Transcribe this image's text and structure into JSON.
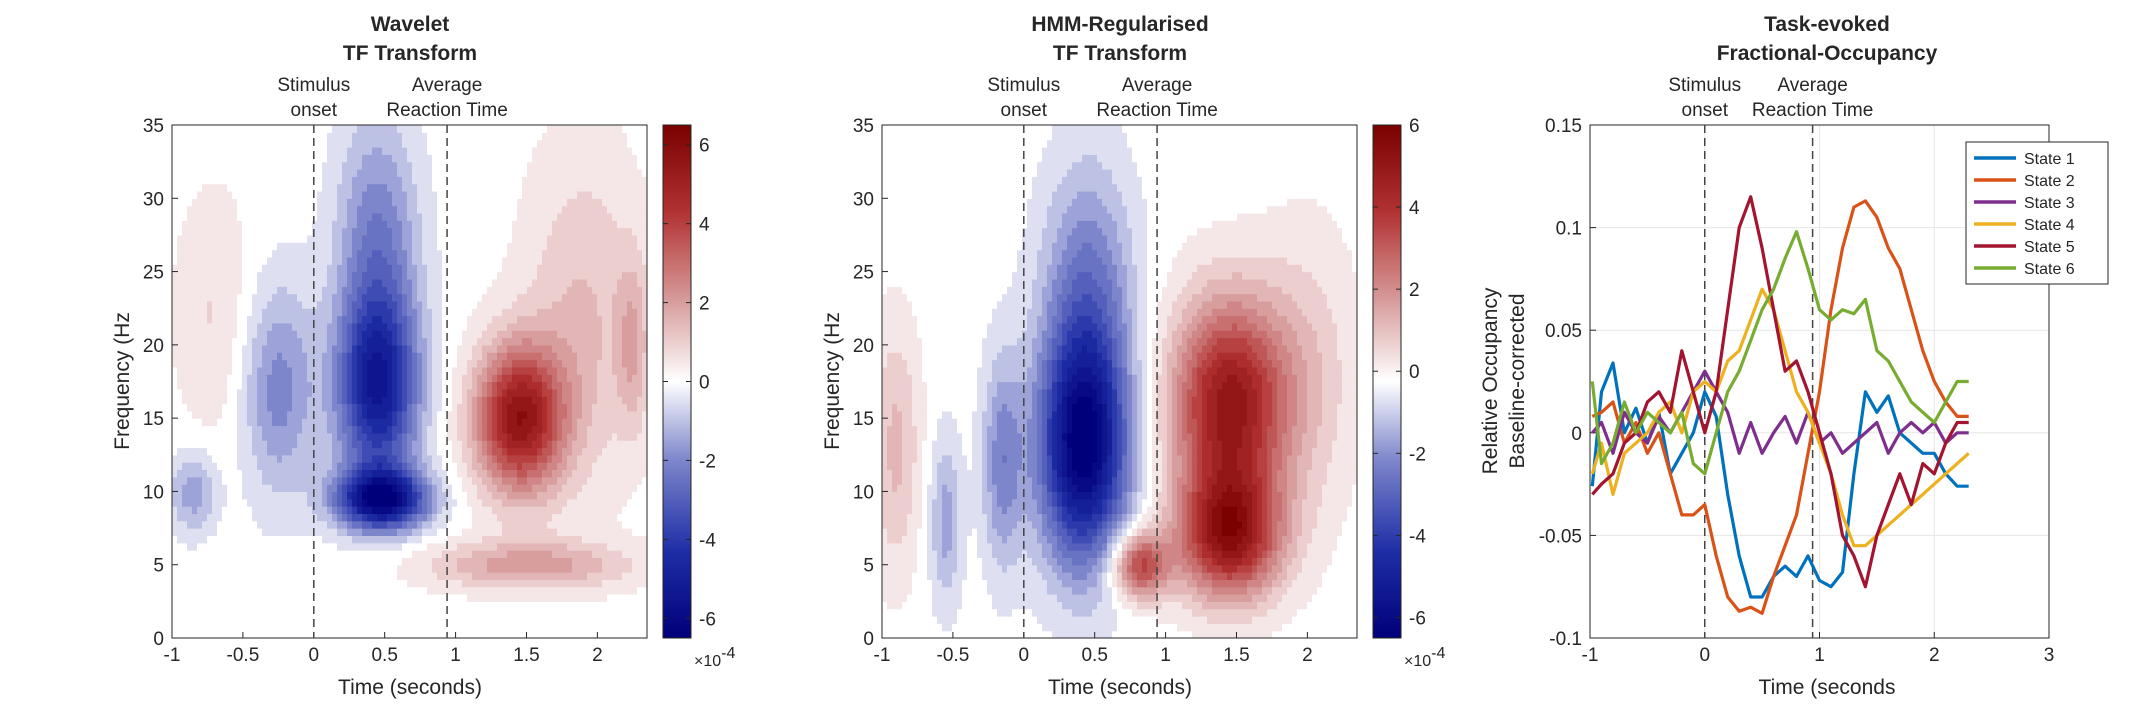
{
  "figure": "three-panel time-frequency and fractional occupancy figure",
  "chart_data": [
    {
      "type": "heatmap",
      "id": "wavelet",
      "title_lines": [
        "Wavelet",
        "TF Transform"
      ],
      "xlabel": "Time (seconds)",
      "ylabel": "Frequency (Hz",
      "xlim": [
        -1,
        2.35
      ],
      "ylim": [
        0,
        35
      ],
      "xticks": [
        -1,
        -0.5,
        0,
        0.5,
        1,
        1.5,
        2
      ],
      "xticklabels": [
        "-1",
        "-0.5",
        "0",
        "0.5",
        "1",
        "1.5",
        "2"
      ],
      "yticks": [
        0,
        5,
        10,
        15,
        20,
        25,
        30,
        35
      ],
      "yticklabels": [
        "0",
        "5",
        "10",
        "15",
        "20",
        "25",
        "30",
        "35"
      ],
      "annotations": [
        {
          "x": 0,
          "lines": [
            "Stimulus",
            "onset"
          ]
        },
        {
          "x": 0.94,
          "lines": [
            "Average",
            "Reaction Time"
          ]
        }
      ],
      "colorbar": {
        "clim": [
          -6.5,
          6.5
        ],
        "ticks": [
          -6,
          -4,
          -2,
          0,
          2,
          4,
          6
        ],
        "ticklabels": [
          "-6",
          "-4",
          "-2",
          "0",
          "2",
          "4",
          "6"
        ],
        "exponent_base": "×10",
        "exponent_power": "-4"
      },
      "blobs": [
        {
          "t": 0.48,
          "f": 9.5,
          "st": 0.22,
          "sf": 1.4,
          "a": -6.0
        },
        {
          "t": 0.45,
          "f": 17,
          "st": 0.2,
          "sf": 4.5,
          "a": -5.0
        },
        {
          "t": 0.45,
          "f": 27,
          "st": 0.2,
          "sf": 6,
          "a": -2.2
        },
        {
          "t": -0.25,
          "f": 17,
          "st": 0.18,
          "sf": 5,
          "a": -2.0
        },
        {
          "t": -0.85,
          "f": 10,
          "st": 0.12,
          "sf": 2,
          "a": -1.6
        },
        {
          "t": 1.45,
          "f": 15,
          "st": 0.22,
          "sf": 3.5,
          "a": 5.5
        },
        {
          "t": 1.5,
          "f": 5,
          "st": 0.5,
          "sf": 1.2,
          "a": 2.0
        },
        {
          "t": 1.9,
          "f": 22,
          "st": 0.3,
          "sf": 8,
          "a": 1.3
        },
        {
          "t": 2.25,
          "f": 20,
          "st": 0.08,
          "sf": 4,
          "a": 1.4
        },
        {
          "t": -0.7,
          "f": 22,
          "st": 0.2,
          "sf": 6,
          "a": 0.8
        }
      ]
    },
    {
      "type": "heatmap",
      "id": "hmm",
      "title_lines": [
        "HMM-Regularised",
        "TF Transform"
      ],
      "xlabel": "Time (seconds)",
      "ylabel": "Frequency (Hz",
      "xlim": [
        -1,
        2.35
      ],
      "ylim": [
        0,
        35
      ],
      "xticks": [
        -1,
        -0.5,
        0,
        0.5,
        1,
        1.5,
        2
      ],
      "xticklabels": [
        "-1",
        "-0.5",
        "0",
        "0.5",
        "1",
        "1.5",
        "2"
      ],
      "yticks": [
        0,
        5,
        10,
        15,
        20,
        25,
        30,
        35
      ],
      "yticklabels": [
        "0",
        "5",
        "10",
        "15",
        "20",
        "25",
        "30",
        "35"
      ],
      "annotations": [
        {
          "x": 0,
          "lines": [
            "Stimulus",
            "onset"
          ]
        },
        {
          "x": 0.94,
          "lines": [
            "Average",
            "Reaction Time"
          ]
        }
      ],
      "colorbar": {
        "clim": [
          -6.5,
          6
        ],
        "ticks": [
          -6,
          -4,
          -2,
          0,
          2,
          4,
          6
        ],
        "ticklabels": [
          "-6",
          "-4",
          "-2",
          "0",
          "2",
          "4",
          "6"
        ],
        "exponent_base": "×10",
        "exponent_power": "-4"
      },
      "blobs": [
        {
          "t": 0.42,
          "f": 13,
          "st": 0.22,
          "sf": 5.5,
          "a": -6.5
        },
        {
          "t": 0.45,
          "f": 24,
          "st": 0.22,
          "sf": 6,
          "a": -2.2
        },
        {
          "t": -0.15,
          "f": 12,
          "st": 0.1,
          "sf": 5,
          "a": -2.0
        },
        {
          "t": -0.55,
          "f": 8,
          "st": 0.08,
          "sf": 4,
          "a": -1.5
        },
        {
          "t": 1.45,
          "f": 16,
          "st": 0.28,
          "sf": 5,
          "a": 5.5
        },
        {
          "t": 1.45,
          "f": 7,
          "st": 0.25,
          "sf": 3,
          "a": 5.2
        },
        {
          "t": 0.82,
          "f": 5,
          "st": 0.14,
          "sf": 1.6,
          "a": 4.0
        },
        {
          "t": -0.9,
          "f": 13,
          "st": 0.12,
          "sf": 6,
          "a": 1.4
        },
        {
          "t": 2.0,
          "f": 18,
          "st": 0.25,
          "sf": 7,
          "a": 1.0
        }
      ]
    },
    {
      "type": "line",
      "id": "fo",
      "title_lines": [
        "Task-evoked",
        "Fractional-Occupancy"
      ],
      "xlabel": "Time (seconds",
      "ylabel_lines": [
        "Relative Occupancy",
        "Baseline-corrected"
      ],
      "xlim": [
        -1,
        3
      ],
      "ylim": [
        -0.1,
        0.15
      ],
      "xticks": [
        -1,
        0,
        1,
        2,
        3
      ],
      "xticklabels": [
        "-1",
        "0",
        "1",
        "2",
        "3"
      ],
      "yticks": [
        -0.1,
        -0.05,
        0,
        0.05,
        0.1,
        0.15
      ],
      "yticklabels": [
        "-0.1",
        "-0.05",
        "0",
        "0.05",
        "0.1",
        "0.15"
      ],
      "grid": true,
      "legend_position": "top-right",
      "annotations": [
        {
          "x": 0,
          "lines": [
            "Stimulus",
            "onset"
          ]
        },
        {
          "x": 0.94,
          "lines": [
            "Average",
            "Reaction Time"
          ]
        }
      ],
      "series": [
        {
          "name": "State 1",
          "color": "#0072BD",
          "x": [
            -0.98,
            -0.9,
            -0.8,
            -0.7,
            -0.6,
            -0.5,
            -0.4,
            -0.3,
            -0.2,
            -0.1,
            0,
            0.1,
            0.2,
            0.3,
            0.4,
            0.5,
            0.6,
            0.7,
            0.8,
            0.9,
            1.0,
            1.1,
            1.2,
            1.3,
            1.4,
            1.5,
            1.6,
            1.7,
            1.8,
            1.9,
            2.0,
            2.1,
            2.2,
            2.3
          ],
          "y": [
            -0.026,
            0.02,
            0.034,
            0.0,
            0.012,
            -0.005,
            0.01,
            -0.02,
            -0.01,
            0.0,
            0.02,
            0.008,
            -0.03,
            -0.06,
            -0.08,
            -0.08,
            -0.07,
            -0.065,
            -0.07,
            -0.06,
            -0.072,
            -0.075,
            -0.068,
            -0.02,
            0.02,
            0.01,
            0.018,
            0.0,
            -0.005,
            -0.01,
            -0.01,
            -0.02,
            -0.026,
            -0.026
          ]
        },
        {
          "name": "State 2",
          "color": "#D95319",
          "x": [
            -0.98,
            -0.9,
            -0.8,
            -0.7,
            -0.6,
            -0.5,
            -0.4,
            -0.3,
            -0.2,
            -0.1,
            0,
            0.1,
            0.2,
            0.3,
            0.4,
            0.5,
            0.6,
            0.7,
            0.8,
            0.9,
            1.0,
            1.1,
            1.2,
            1.3,
            1.4,
            1.5,
            1.6,
            1.7,
            1.8,
            1.9,
            2.0,
            2.1,
            2.2,
            2.3
          ],
          "y": [
            0.008,
            0.01,
            0.015,
            -0.005,
            0.005,
            -0.01,
            0.0,
            -0.02,
            -0.04,
            -0.04,
            -0.035,
            -0.06,
            -0.08,
            -0.087,
            -0.085,
            -0.088,
            -0.07,
            -0.055,
            -0.04,
            -0.01,
            0.02,
            0.06,
            0.09,
            0.11,
            0.113,
            0.105,
            0.09,
            0.08,
            0.06,
            0.04,
            0.025,
            0.015,
            0.008,
            0.008
          ]
        },
        {
          "name": "State 3",
          "color": "#7E2F8E",
          "x": [
            -0.98,
            -0.9,
            -0.8,
            -0.7,
            -0.6,
            -0.5,
            -0.4,
            -0.3,
            -0.2,
            -0.1,
            0,
            0.1,
            0.2,
            0.3,
            0.4,
            0.5,
            0.6,
            0.7,
            0.8,
            0.9,
            1.0,
            1.1,
            1.2,
            1.3,
            1.4,
            1.5,
            1.6,
            1.7,
            1.8,
            1.9,
            2.0,
            2.1,
            2.2,
            2.3
          ],
          "y": [
            0.0,
            0.005,
            -0.01,
            0.01,
            0.0,
            -0.005,
            0.008,
            0.0,
            0.01,
            0.02,
            0.03,
            0.02,
            0.01,
            -0.01,
            0.005,
            -0.01,
            0.0,
            0.008,
            -0.005,
            0.01,
            -0.005,
            0.0,
            -0.01,
            -0.005,
            0.0,
            0.005,
            -0.01,
            0.0,
            0.005,
            0.0,
            0.005,
            -0.005,
            0.0,
            0.0
          ]
        },
        {
          "name": "State 4",
          "color": "#EDB120",
          "x": [
            -0.98,
            -0.9,
            -0.8,
            -0.7,
            -0.6,
            -0.5,
            -0.4,
            -0.3,
            -0.2,
            -0.1,
            0,
            0.1,
            0.2,
            0.3,
            0.4,
            0.5,
            0.6,
            0.7,
            0.8,
            0.9,
            1.0,
            1.1,
            1.2,
            1.3,
            1.4,
            1.5,
            1.6,
            1.7,
            1.8,
            1.9,
            2.0,
            2.1,
            2.2,
            2.3
          ],
          "y": [
            -0.02,
            -0.005,
            -0.03,
            -0.01,
            -0.005,
            0.0,
            0.01,
            0.015,
            0.0,
            0.02,
            0.025,
            0.02,
            0.035,
            0.04,
            0.055,
            0.07,
            0.06,
            0.04,
            0.02,
            0.01,
            -0.005,
            -0.02,
            -0.04,
            -0.055,
            -0.055,
            -0.05,
            -0.045,
            -0.04,
            -0.035,
            -0.03,
            -0.025,
            -0.02,
            -0.015,
            -0.01
          ]
        },
        {
          "name": "State 5",
          "color": "#A2142F",
          "x": [
            -0.98,
            -0.9,
            -0.8,
            -0.7,
            -0.6,
            -0.5,
            -0.4,
            -0.3,
            -0.2,
            -0.1,
            0,
            0.1,
            0.2,
            0.3,
            0.4,
            0.5,
            0.6,
            0.7,
            0.8,
            0.9,
            1.0,
            1.1,
            1.2,
            1.3,
            1.4,
            1.5,
            1.6,
            1.7,
            1.8,
            1.9,
            2.0,
            2.1,
            2.2,
            2.3
          ],
          "y": [
            -0.03,
            -0.025,
            -0.02,
            -0.005,
            0.0,
            0.015,
            0.02,
            0.01,
            0.04,
            0.02,
            0.0,
            0.02,
            0.06,
            0.1,
            0.115,
            0.09,
            0.06,
            0.03,
            0.035,
            0.02,
            0.0,
            -0.02,
            -0.05,
            -0.06,
            -0.075,
            -0.05,
            -0.035,
            -0.02,
            -0.035,
            -0.015,
            -0.02,
            -0.005,
            0.005,
            0.005
          ]
        },
        {
          "name": "State 6",
          "color": "#77AC30",
          "x": [
            -0.98,
            -0.9,
            -0.8,
            -0.7,
            -0.6,
            -0.5,
            -0.4,
            -0.3,
            -0.2,
            -0.1,
            0,
            0.1,
            0.2,
            0.3,
            0.4,
            0.5,
            0.6,
            0.7,
            0.8,
            0.9,
            1.0,
            1.1,
            1.2,
            1.3,
            1.4,
            1.5,
            1.6,
            1.7,
            1.8,
            1.9,
            2.0,
            2.1,
            2.2,
            2.3
          ],
          "y": [
            0.025,
            -0.015,
            -0.005,
            0.015,
            0.0,
            0.01,
            0.005,
            0.0,
            0.01,
            -0.015,
            -0.02,
            0.0,
            0.02,
            0.03,
            0.045,
            0.06,
            0.07,
            0.085,
            0.098,
            0.08,
            0.06,
            0.055,
            0.06,
            0.058,
            0.065,
            0.04,
            0.035,
            0.025,
            0.015,
            0.01,
            0.005,
            0.015,
            0.025,
            0.025
          ]
        }
      ]
    }
  ]
}
